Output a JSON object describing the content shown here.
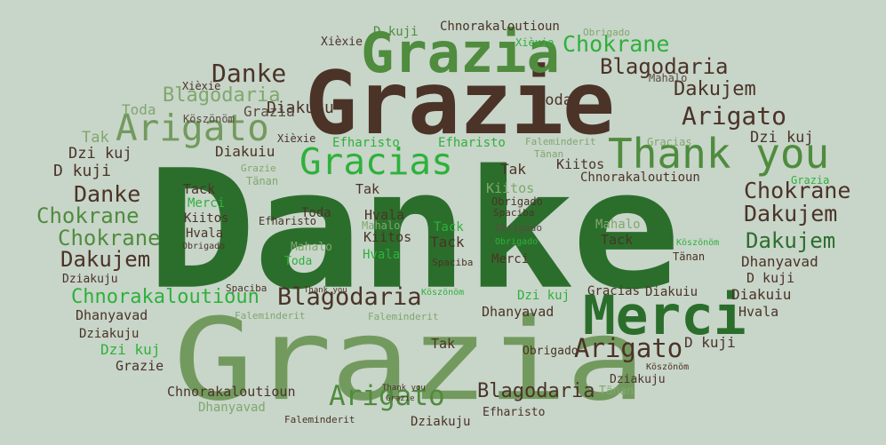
{
  "words": {
    "w1": "Danke",
    "w2": "Grazia",
    "w3": "Grazie",
    "w4": "Grazia",
    "w5": "Merci",
    "w6": "Thank you",
    "w7": "Arigato",
    "w8": "Gracias",
    "w9": "Danke",
    "w10": "Blagodaria",
    "w11": "Blagodaria",
    "w12": "Chokrane",
    "w13": "Dakujem",
    "w14": "Arigato",
    "w15": "Danke",
    "w16": "Chokrane",
    "w17": "Chokrane",
    "w18": "Dakujem",
    "w19": "Chokrane",
    "w20": "Dakujem",
    "w21": "Dakujem",
    "w22": "Blagodaria",
    "w23": "Arigato",
    "w24": "Arigato",
    "w25": "Blagodaria",
    "w26": "Chnorakaloutioun",
    "w27": "Diakuiu",
    "w28": "Grazia",
    "w29": "Köszönöm",
    "w30": "Toda",
    "w31": "Tak",
    "w32": "Dzi kuj",
    "w33": "D kuji",
    "w34": "D kuji",
    "w35": "Chnorakaloutioun",
    "w36": "Obrigado",
    "w37": "Xièxie",
    "w38": "Xièxie",
    "w39": "Xièxie",
    "w40": "Mahalo",
    "w41": "Toda",
    "w42": "Diakuiu",
    "w43": "Xièxie",
    "w44": "Efharisto",
    "w45": "Efharisto",
    "w46": "Faleminderit",
    "w47": "Gracias",
    "w48": "Tänan",
    "w49": "Dzi kuj",
    "w50": "Kiitos",
    "w51": "Tak",
    "w52": "Grazie",
    "w53": "Tänan",
    "w54": "Chnorakaloutioun",
    "w55": "Grazia",
    "w56": "Tack",
    "w57": "Tak",
    "w58": "Kiitos",
    "w59": "Merci",
    "w60": "Obrigado",
    "w61": "Toda",
    "w62": "Hvala",
    "w63": "Spaciba",
    "w64": "Kiitos",
    "w65": "Efharisto",
    "w66": "Mahalo",
    "w67": "Tack",
    "w68": "Obrigado",
    "w69": "Mahalo",
    "w70": "Hvala",
    "w71": "Kiitos",
    "w72": "Tack",
    "w73": "Obrigado",
    "w74": "Tack",
    "w75": "Köszönöm",
    "w76": "Obrigado",
    "w77": "Mahalo",
    "w78": "Hvala",
    "w79": "Tänan",
    "w80": "Dhanyavad",
    "w81": "Toda",
    "w82": "Spaciba",
    "w83": "Merci",
    "w84": "Dziakuju",
    "w85": "Spaciba",
    "w86": "Thank you",
    "w87": "Köszönöm",
    "w88": "Dzi kuj",
    "w89": "Gracias",
    "w90": "Diakuiu",
    "w91": "D kuji",
    "w92": "Diakuiu",
    "w93": "Dhanyavad",
    "w94": "Hvala",
    "w95": "Dhanyavad",
    "w96": "Faleminderit",
    "w97": "Faleminderit",
    "w98": "Dziakuju",
    "w99": "D kuji",
    "w100": "Tak",
    "w101": "Dzi kuj",
    "w102": "Obrigado",
    "w103": "Grazie",
    "w104": "Köszönöm",
    "w105": "Dziakuju",
    "w106": "Thank you",
    "w107": "Chnorakaloutioun",
    "w108": "Tänan",
    "w109": "Grazie",
    "w110": "Dhanyavad",
    "w111": "Dziakuju",
    "w112": "Efharisto",
    "w113": "Faleminderit"
  },
  "colors": {
    "background": "#c8d5c9",
    "dark_brown": "#4b3328",
    "dark_green": "#2b6e2c",
    "mid_green": "#4f8c3e",
    "sage_green": "#739a5e",
    "bright_green": "#2eb13b",
    "grey_brown": "#5b4a42",
    "light_green": "#7fa86d"
  }
}
